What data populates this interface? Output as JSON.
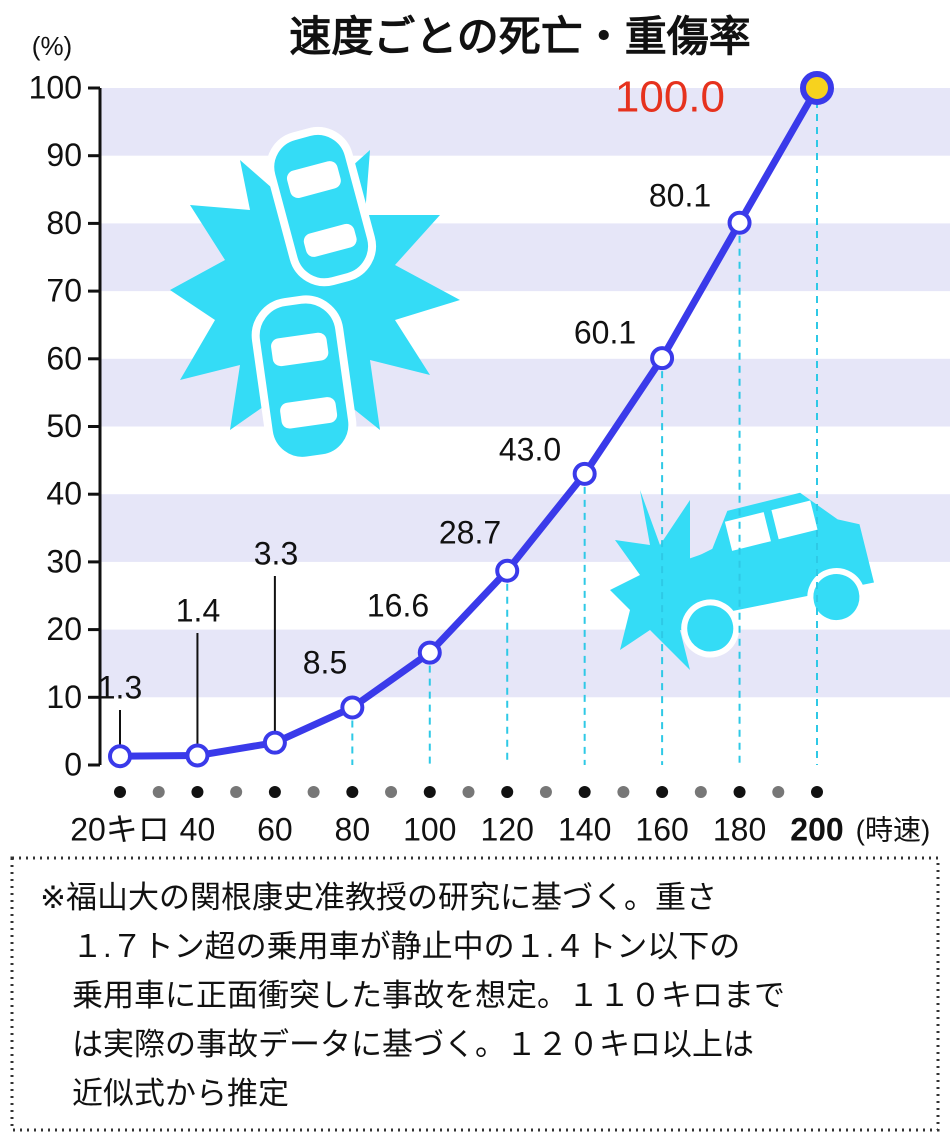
{
  "chart_data": {
    "type": "line",
    "title": "速度ごとの死亡・重傷率",
    "y_label": "(%)",
    "x_label": "(時速)",
    "x": [
      20,
      40,
      60,
      80,
      100,
      120,
      140,
      160,
      180,
      200
    ],
    "series": [
      {
        "color": "#3a3aea",
        "values": [
          1.3,
          1.4,
          3.3,
          8.5,
          16.6,
          28.7,
          43.0,
          60.1,
          80.1,
          100.0
        ],
        "value_labels": [
          "1.3",
          "1.4",
          "3.3",
          "8.5",
          "16.6",
          "28.7",
          "43.0",
          "60.1",
          "80.1",
          "100.0"
        ]
      }
    ],
    "highlight_point_color": "#f7d21e",
    "highlight_label_color": "#e6321e",
    "band_color": "#e6e6f8",
    "guide_color": "#2ec9e6",
    "xlim": [
      20,
      200
    ],
    "xticks": [
      {
        "value": 20,
        "label": "20キロ"
      },
      40,
      60,
      80,
      100,
      120,
      140,
      160,
      180,
      200
    ],
    "ylim": [
      0,
      100
    ],
    "yticks": [
      0,
      10,
      20,
      30,
      40,
      50,
      60,
      70,
      80,
      90,
      100
    ],
    "note": [
      "※福山大の関根康史准教授の研究に基づく。重さ",
      "１.７トン超の乗用車が静止中の１.４トン以下の",
      "乗用車に正面衝突した事故を想定。１１０キロまで",
      "は実際の事故データに基づく。１２０キロ以上は",
      "近似式から推定"
    ]
  }
}
